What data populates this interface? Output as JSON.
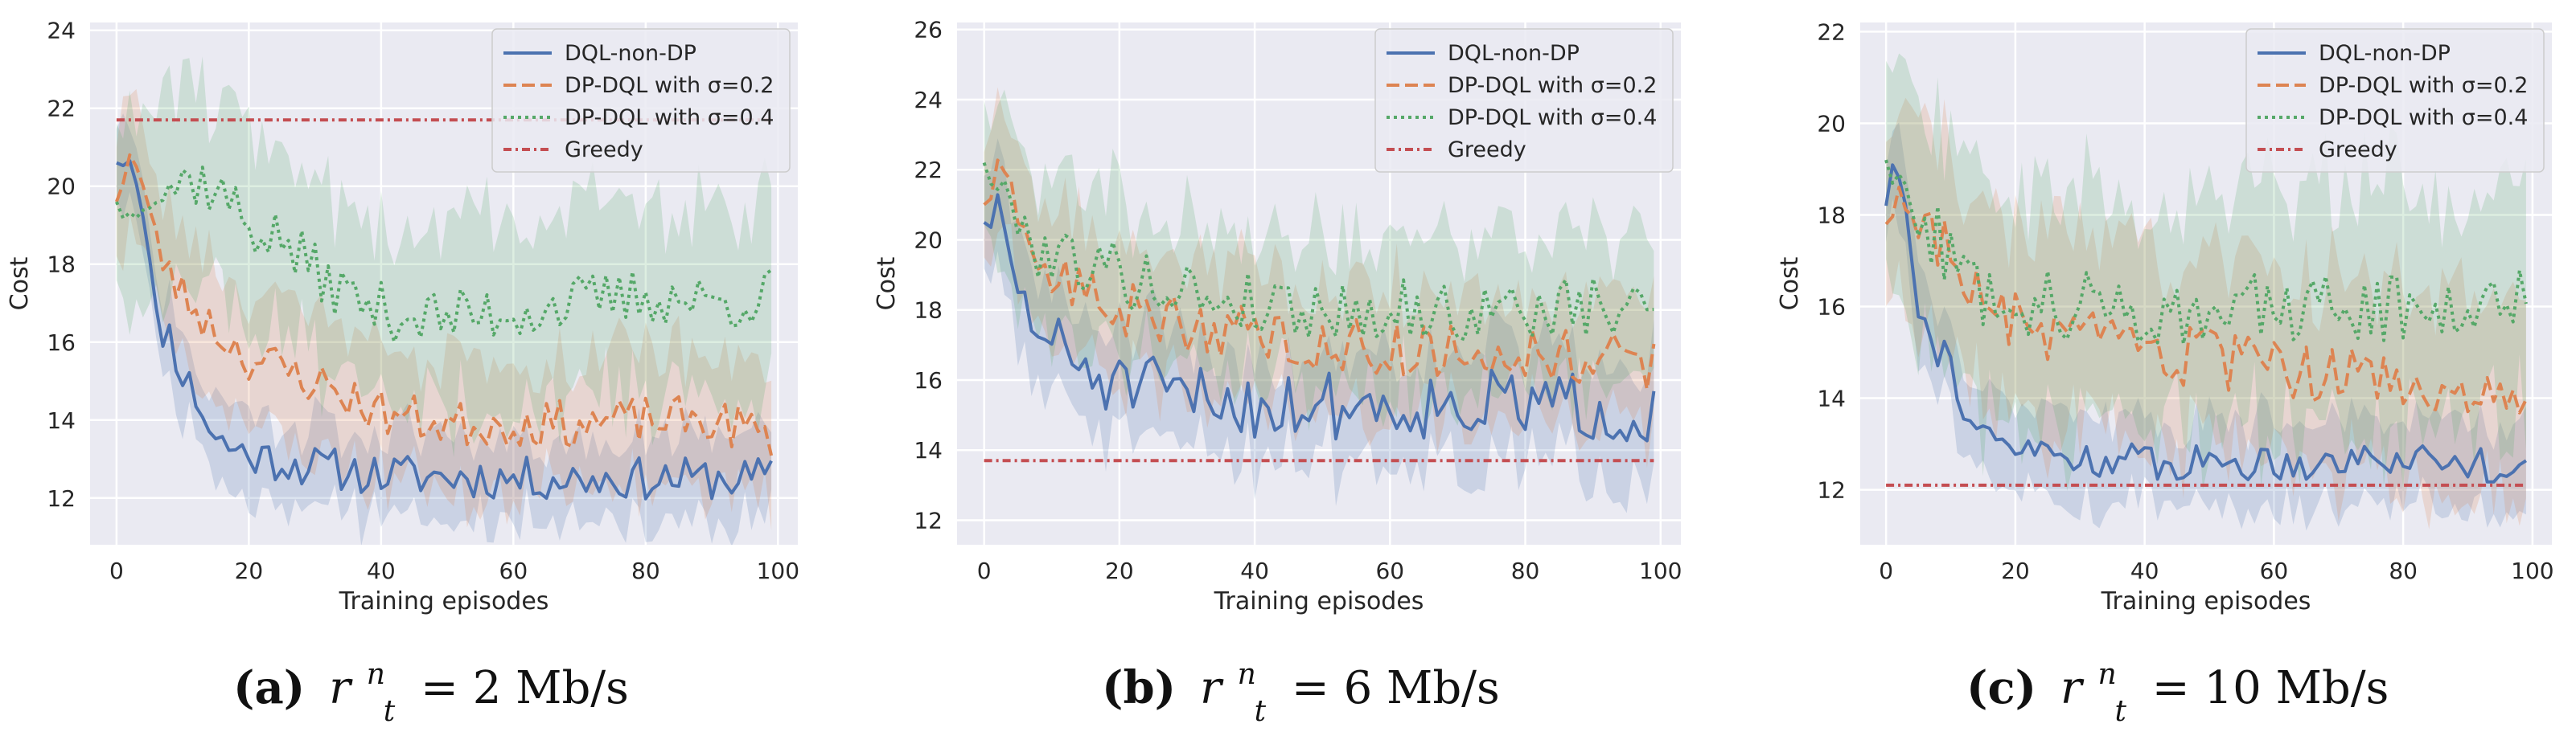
{
  "figure": {
    "panels": [
      {
        "caption_letter": "(a)",
        "caption_math": "r",
        "caption_sup": "n",
        "caption_sub": "t",
        "caption_rest": "= 2 Mb/s"
      },
      {
        "caption_letter": "(b)",
        "caption_math": "r",
        "caption_sup": "n",
        "caption_sub": "t",
        "caption_rest": "= 6 Mb/s"
      },
      {
        "caption_letter": "(c)",
        "caption_math": "r",
        "caption_sup": "n",
        "caption_sub": "t",
        "caption_rest": "= 10 Mb/s"
      }
    ]
  },
  "colors": {
    "dql": "#4c72b0",
    "dp02": "#dd8452",
    "dp04": "#55a868",
    "greedy": "#c44e52",
    "background": "#eaeaf2",
    "grid": "#ffffff"
  },
  "chart_data": [
    {
      "type": "line",
      "xlabel": "Training episodes",
      "ylabel": "Cost",
      "xlim": [
        -4,
        103
      ],
      "ylim": [
        10.8,
        24.2
      ],
      "xticks": [
        0,
        20,
        40,
        60,
        80,
        100
      ],
      "yticks": [
        12,
        14,
        16,
        18,
        20,
        22,
        24
      ],
      "legend_position": "top-right",
      "series": [
        {
          "name": "DQL-non-DP",
          "style": "solid",
          "color_key": "dql",
          "x": [
            0,
            99
          ],
          "start": 20.6,
          "knot_x": [
            0,
            2,
            4,
            6,
            8,
            10,
            12,
            15,
            20,
            30,
            40,
            60,
            80,
            99
          ],
          "knot_y": [
            20.6,
            20.8,
            19.5,
            16.5,
            16.2,
            15.2,
            14.6,
            13.5,
            13.1,
            12.8,
            12.6,
            12.5,
            12.5,
            12.5
          ],
          "noise": 0.55,
          "seed": 11,
          "band": 1.0,
          "end": 12.7
        },
        {
          "name": "DP-DQL with σ=0.2",
          "style": "dashed",
          "color_key": "dp02",
          "x": [
            0,
            99
          ],
          "knot_x": [
            0,
            2,
            4,
            6,
            8,
            10,
            15,
            20,
            25,
            30,
            40,
            50,
            60,
            70,
            80,
            90,
            99
          ],
          "knot_y": [
            19.6,
            20.9,
            20.0,
            18.5,
            17.8,
            17.2,
            16.3,
            15.6,
            15.3,
            15.0,
            14.2,
            13.9,
            13.9,
            13.9,
            14.0,
            14.0,
            13.6
          ],
          "noise": 0.6,
          "seed": 23,
          "band": 1.6
        },
        {
          "name": "DP-DQL with σ=0.4",
          "style": "dotted",
          "color_key": "dp04",
          "x": [
            0,
            99
          ],
          "knot_x": [
            0,
            2,
            4,
            8,
            12,
            16,
            20,
            25,
            30,
            35,
            40,
            50,
            60,
            70,
            80,
            90,
            99
          ],
          "knot_y": [
            19.6,
            19.2,
            19.8,
            20.0,
            20.2,
            19.8,
            19.0,
            18.6,
            17.8,
            17.2,
            16.8,
            16.6,
            16.8,
            17.0,
            17.2,
            17.0,
            17.2
          ],
          "noise": 0.75,
          "seed": 37,
          "band": 2.3
        },
        {
          "name": "Greedy",
          "style": "dashdot",
          "color_key": "greedy",
          "x": [
            0,
            99
          ],
          "values": [
            21.7,
            21.7
          ]
        }
      ]
    },
    {
      "type": "line",
      "xlabel": "Training episodes",
      "ylabel": "Cost",
      "xlim": [
        -4,
        103
      ],
      "ylim": [
        11.3,
        26.2
      ],
      "xticks": [
        0,
        20,
        40,
        60,
        80,
        100
      ],
      "yticks": [
        12,
        14,
        16,
        18,
        20,
        22,
        24,
        26
      ],
      "legend_position": "top-right",
      "series": [
        {
          "name": "DQL-non-DP",
          "style": "solid",
          "color_key": "dql",
          "x": [
            0,
            99
          ],
          "knot_x": [
            0,
            2,
            4,
            6,
            8,
            10,
            15,
            20,
            30,
            40,
            60,
            80,
            99
          ],
          "knot_y": [
            20.5,
            20.8,
            19.3,
            18.0,
            17.5,
            17.0,
            16.3,
            15.8,
            15.5,
            15.3,
            15.3,
            15.3,
            15.1
          ],
          "noise": 1.0,
          "seed": 51,
          "band": 1.5
        },
        {
          "name": "DP-DQL with σ=0.2",
          "style": "dashed",
          "color_key": "dp02",
          "x": [
            0,
            99
          ],
          "knot_x": [
            0,
            2,
            4,
            6,
            8,
            10,
            15,
            20,
            30,
            40,
            50,
            60,
            70,
            80,
            90,
            99
          ],
          "knot_y": [
            21.0,
            21.8,
            21.2,
            20.0,
            19.4,
            19.0,
            18.5,
            18.0,
            17.6,
            17.3,
            17.0,
            16.9,
            16.8,
            16.8,
            16.7,
            16.3
          ],
          "noise": 0.8,
          "seed": 63,
          "band": 1.7
        },
        {
          "name": "DP-DQL with σ=0.4",
          "style": "dotted",
          "color_key": "dp04",
          "x": [
            0,
            99
          ],
          "knot_x": [
            0,
            2,
            4,
            6,
            8,
            10,
            15,
            20,
            30,
            40,
            50,
            60,
            70,
            80,
            90,
            99
          ],
          "knot_y": [
            22.2,
            21.5,
            21.0,
            20.3,
            19.8,
            19.6,
            19.4,
            19.0,
            18.5,
            18.2,
            18.0,
            18.0,
            17.9,
            18.0,
            18.0,
            18.0
          ],
          "noise": 0.9,
          "seed": 79,
          "band": 2.0
        },
        {
          "name": "Greedy",
          "style": "dashdot",
          "color_key": "greedy",
          "x": [
            0,
            99
          ],
          "values": [
            13.7,
            13.7
          ]
        }
      ]
    },
    {
      "type": "line",
      "xlabel": "Training episodes",
      "ylabel": "Cost",
      "xlim": [
        -4,
        103
      ],
      "ylim": [
        10.8,
        22.2
      ],
      "xticks": [
        0,
        20,
        40,
        60,
        80,
        100
      ],
      "yticks": [
        12,
        14,
        16,
        18,
        20,
        22
      ],
      "legend_position": "top-right",
      "series": [
        {
          "name": "DQL-non-DP",
          "style": "solid",
          "color_key": "dql",
          "x": [
            0,
            99
          ],
          "knot_x": [
            0,
            1,
            3,
            5,
            7,
            9,
            11,
            13,
            16,
            20,
            30,
            40,
            60,
            80,
            99
          ],
          "knot_y": [
            18.2,
            19.2,
            18.4,
            16.0,
            15.2,
            15.0,
            14.3,
            13.5,
            13.0,
            12.9,
            12.7,
            12.6,
            12.6,
            12.7,
            12.5
          ],
          "noise": 0.4,
          "seed": 91,
          "band": 0.9
        },
        {
          "name": "DP-DQL with σ=0.2",
          "style": "dashed",
          "color_key": "dp02",
          "x": [
            0,
            99
          ],
          "knot_x": [
            0,
            2,
            4,
            6,
            8,
            10,
            15,
            20,
            30,
            40,
            50,
            60,
            70,
            80,
            90,
            99
          ],
          "knot_y": [
            17.8,
            18.5,
            18.0,
            17.8,
            17.6,
            17.0,
            16.0,
            15.6,
            15.2,
            15.0,
            14.8,
            14.6,
            14.5,
            14.3,
            14.1,
            13.5
          ],
          "noise": 0.7,
          "seed": 103,
          "band": 2.0
        },
        {
          "name": "DP-DQL with σ=0.4",
          "style": "dotted",
          "color_key": "dp04",
          "x": [
            0,
            99
          ],
          "knot_x": [
            0,
            2,
            4,
            6,
            8,
            10,
            15,
            20,
            30,
            40,
            50,
            60,
            70,
            80,
            90,
            99
          ],
          "knot_y": [
            19.2,
            18.6,
            18.2,
            17.8,
            17.4,
            17.0,
            16.4,
            16.2,
            16.0,
            15.9,
            15.9,
            15.9,
            16.0,
            16.0,
            16.0,
            16.6
          ],
          "noise": 0.8,
          "seed": 127,
          "band": 2.4
        },
        {
          "name": "Greedy",
          "style": "dashdot",
          "color_key": "greedy",
          "x": [
            0,
            99
          ],
          "values": [
            12.1,
            12.1
          ]
        }
      ]
    }
  ]
}
